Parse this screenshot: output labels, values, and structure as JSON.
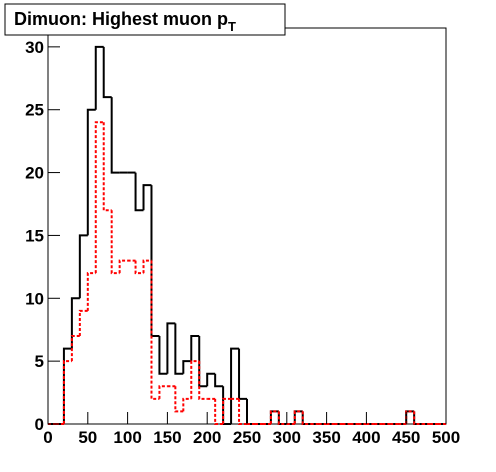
{
  "chart_data": {
    "type": "histogram",
    "title": "Dimuon: Highest muon p",
    "title_subscript": "T",
    "bins": [
      0,
      10,
      20,
      30,
      40,
      50,
      60,
      70,
      80,
      90,
      100,
      110,
      120,
      130,
      140,
      150,
      160,
      170,
      180,
      190,
      200,
      210,
      220,
      230,
      240,
      250,
      260,
      270,
      280,
      290,
      300,
      310,
      320,
      330,
      340,
      350,
      360,
      370,
      380,
      390,
      400,
      410,
      420,
      430,
      440,
      450,
      460,
      470,
      480,
      490,
      500
    ],
    "series": [
      {
        "color": "#000000",
        "dash": false,
        "values": [
          0,
          0,
          6,
          10,
          15,
          25,
          30,
          26,
          20,
          20,
          20,
          17,
          19,
          7,
          4,
          8,
          4,
          5,
          7,
          3,
          4,
          3,
          0,
          6,
          2,
          0,
          0,
          0,
          1,
          0,
          0,
          1,
          0,
          0,
          0,
          0,
          0,
          0,
          0,
          0,
          0,
          0,
          0,
          0,
          0,
          1,
          0,
          0,
          0,
          0
        ]
      },
      {
        "color": "#ff0000",
        "dash": true,
        "values": [
          0,
          0,
          5,
          7,
          9,
          12,
          24,
          17,
          12,
          13,
          13,
          12,
          13,
          2,
          3,
          3,
          1,
          2,
          5,
          2,
          2,
          0,
          2,
          2,
          0,
          0,
          0,
          0,
          1,
          0,
          0,
          1,
          0,
          0,
          0,
          0,
          0,
          0,
          0,
          0,
          0,
          0,
          0,
          0,
          0,
          1,
          0,
          0,
          0,
          0
        ]
      }
    ],
    "xlim": [
      0,
      500
    ],
    "xticks": [
      0,
      50,
      100,
      150,
      200,
      250,
      300,
      350,
      400,
      450,
      500
    ],
    "ylim": [
      0,
      31.5
    ],
    "yticks": [
      0,
      5,
      10,
      15,
      20,
      25,
      30
    ]
  }
}
